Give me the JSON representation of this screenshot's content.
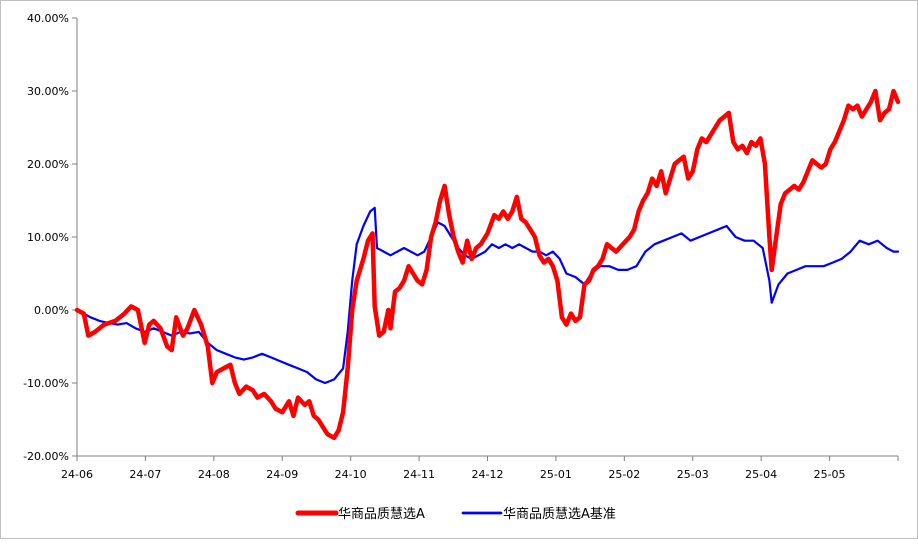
{
  "chart_data": {
    "type": "line",
    "title": "",
    "xlabel": "",
    "ylabel": "",
    "ylim": [
      -20,
      40
    ],
    "y_ticks": [
      "-20.00%",
      "-10.00%",
      "0.00%",
      "10.00%",
      "20.00%",
      "30.00%",
      "40.00%"
    ],
    "x_ticks": [
      "24-06",
      "24-07",
      "24-08",
      "24-09",
      "24-10",
      "24-11",
      "24-12",
      "25-01",
      "25-02",
      "25-03",
      "25-04",
      "25-05"
    ],
    "x_range": [
      "2024-06-01",
      "2025-05-31"
    ],
    "grid": false,
    "legend_position": "bottom",
    "series": [
      {
        "name": "华商品质慧选A",
        "color": "#ff0000",
        "points": [
          [
            "2024-06-01",
            0.0
          ],
          [
            "2024-06-04",
            -0.5
          ],
          [
            "2024-06-06",
            -3.5
          ],
          [
            "2024-06-09",
            -3.0
          ],
          [
            "2024-06-13",
            -2.0
          ],
          [
            "2024-06-18",
            -1.5
          ],
          [
            "2024-06-22",
            -0.5
          ],
          [
            "2024-06-25",
            0.5
          ],
          [
            "2024-06-28",
            0.0
          ],
          [
            "2024-07-01",
            -4.5
          ],
          [
            "2024-07-03",
            -2.0
          ],
          [
            "2024-07-05",
            -1.5
          ],
          [
            "2024-07-08",
            -2.5
          ],
          [
            "2024-07-11",
            -5.0
          ],
          [
            "2024-07-13",
            -5.5
          ],
          [
            "2024-07-15",
            -1.0
          ],
          [
            "2024-07-18",
            -3.5
          ],
          [
            "2024-07-20",
            -2.5
          ],
          [
            "2024-07-23",
            0.0
          ],
          [
            "2024-07-26",
            -2.0
          ],
          [
            "2024-07-29",
            -5.0
          ],
          [
            "2024-07-31",
            -10.0
          ],
          [
            "2024-08-02",
            -8.5
          ],
          [
            "2024-08-05",
            -8.0
          ],
          [
            "2024-08-08",
            -7.5
          ],
          [
            "2024-08-10",
            -10.0
          ],
          [
            "2024-08-12",
            -11.5
          ],
          [
            "2024-08-15",
            -10.5
          ],
          [
            "2024-08-18",
            -11.0
          ],
          [
            "2024-08-20",
            -12.0
          ],
          [
            "2024-08-23",
            -11.5
          ],
          [
            "2024-08-26",
            -12.5
          ],
          [
            "2024-08-28",
            -13.5
          ],
          [
            "2024-08-31",
            -14.0
          ],
          [
            "2024-09-03",
            -12.5
          ],
          [
            "2024-09-05",
            -14.5
          ],
          [
            "2024-09-07",
            -12.0
          ],
          [
            "2024-09-10",
            -13.0
          ],
          [
            "2024-09-12",
            -12.5
          ],
          [
            "2024-09-14",
            -14.5
          ],
          [
            "2024-09-16",
            -15.0
          ],
          [
            "2024-09-18",
            -16.0
          ],
          [
            "2024-09-20",
            -17.0
          ],
          [
            "2024-09-23",
            -17.5
          ],
          [
            "2024-09-25",
            -16.5
          ],
          [
            "2024-09-27",
            -14.0
          ],
          [
            "2024-09-29",
            -8.0
          ],
          [
            "2024-10-01",
            0.0
          ],
          [
            "2024-10-03",
            4.0
          ],
          [
            "2024-10-06",
            7.0
          ],
          [
            "2024-10-08",
            9.5
          ],
          [
            "2024-10-10",
            10.5
          ],
          [
            "2024-10-11",
            0.5
          ],
          [
            "2024-10-13",
            -3.5
          ],
          [
            "2024-10-15",
            -3.0
          ],
          [
            "2024-10-17",
            0.0
          ],
          [
            "2024-10-18",
            -2.5
          ],
          [
            "2024-10-20",
            2.5
          ],
          [
            "2024-10-22",
            3.0
          ],
          [
            "2024-10-24",
            4.0
          ],
          [
            "2024-10-26",
            6.0
          ],
          [
            "2024-10-28",
            5.0
          ],
          [
            "2024-10-30",
            4.0
          ],
          [
            "2024-11-01",
            3.5
          ],
          [
            "2024-11-03",
            5.5
          ],
          [
            "2024-11-05",
            10.0
          ],
          [
            "2024-11-07",
            12.0
          ],
          [
            "2024-11-09",
            15.0
          ],
          [
            "2024-11-11",
            17.0
          ],
          [
            "2024-11-13",
            13.0
          ],
          [
            "2024-11-15",
            10.0
          ],
          [
            "2024-11-17",
            8.0
          ],
          [
            "2024-11-19",
            6.5
          ],
          [
            "2024-11-21",
            9.5
          ],
          [
            "2024-11-23",
            7.0
          ],
          [
            "2024-11-25",
            8.5
          ],
          [
            "2024-11-27",
            9.0
          ],
          [
            "2024-11-30",
            10.5
          ],
          [
            "2024-12-03",
            13.0
          ],
          [
            "2024-12-05",
            12.5
          ],
          [
            "2024-12-07",
            13.5
          ],
          [
            "2024-12-09",
            12.5
          ],
          [
            "2024-12-11",
            13.5
          ],
          [
            "2024-12-13",
            15.5
          ],
          [
            "2024-12-15",
            12.5
          ],
          [
            "2024-12-17",
            12.0
          ],
          [
            "2024-12-19",
            11.0
          ],
          [
            "2024-12-21",
            10.0
          ],
          [
            "2024-12-23",
            7.5
          ],
          [
            "2024-12-25",
            6.5
          ],
          [
            "2024-12-27",
            7.0
          ],
          [
            "2024-12-29",
            6.0
          ],
          [
            "2024-12-31",
            4.0
          ],
          [
            "2025-01-02",
            -1.0
          ],
          [
            "2025-01-04",
            -2.0
          ],
          [
            "2025-01-06",
            -0.5
          ],
          [
            "2025-01-08",
            -1.5
          ],
          [
            "2025-01-10",
            -1.0
          ],
          [
            "2025-01-12",
            3.5
          ],
          [
            "2025-01-14",
            4.0
          ],
          [
            "2025-01-16",
            5.5
          ],
          [
            "2025-01-18",
            6.0
          ],
          [
            "2025-01-20",
            7.0
          ],
          [
            "2025-01-22",
            9.0
          ],
          [
            "2025-01-24",
            8.5
          ],
          [
            "2025-01-26",
            8.0
          ],
          [
            "2025-01-29",
            9.0
          ],
          [
            "2025-02-01",
            10.0
          ],
          [
            "2025-02-03",
            11.0
          ],
          [
            "2025-02-05",
            13.5
          ],
          [
            "2025-02-07",
            15.0
          ],
          [
            "2025-02-09",
            16.0
          ],
          [
            "2025-02-11",
            18.0
          ],
          [
            "2025-02-13",
            17.0
          ],
          [
            "2025-02-15",
            19.0
          ],
          [
            "2025-02-17",
            16.0
          ],
          [
            "2025-02-19",
            18.0
          ],
          [
            "2025-02-21",
            20.0
          ],
          [
            "2025-02-23",
            20.5
          ],
          [
            "2025-02-25",
            21.0
          ],
          [
            "2025-02-27",
            18.0
          ],
          [
            "2025-03-01",
            19.0
          ],
          [
            "2025-03-03",
            22.0
          ],
          [
            "2025-03-05",
            23.5
          ],
          [
            "2025-03-07",
            23.0
          ],
          [
            "2025-03-09",
            24.0
          ],
          [
            "2025-03-11",
            25.0
          ],
          [
            "2025-03-13",
            26.0
          ],
          [
            "2025-03-15",
            26.5
          ],
          [
            "2025-03-17",
            27.0
          ],
          [
            "2025-03-19",
            23.0
          ],
          [
            "2025-03-21",
            22.0
          ],
          [
            "2025-03-23",
            22.5
          ],
          [
            "2025-03-25",
            21.5
          ],
          [
            "2025-03-27",
            23.0
          ],
          [
            "2025-03-29",
            22.5
          ],
          [
            "2025-03-31",
            23.5
          ],
          [
            "2025-04-02",
            20.0
          ],
          [
            "2025-04-04",
            10.0
          ],
          [
            "2025-04-05",
            5.5
          ],
          [
            "2025-04-07",
            10.0
          ],
          [
            "2025-04-09",
            14.5
          ],
          [
            "2025-04-11",
            16.0
          ],
          [
            "2025-04-13",
            16.5
          ],
          [
            "2025-04-15",
            17.0
          ],
          [
            "2025-04-17",
            16.5
          ],
          [
            "2025-04-19",
            17.5
          ],
          [
            "2025-04-21",
            19.0
          ],
          [
            "2025-04-23",
            20.5
          ],
          [
            "2025-04-25",
            20.0
          ],
          [
            "2025-04-27",
            19.5
          ],
          [
            "2025-04-29",
            20.0
          ],
          [
            "2025-05-01",
            22.0
          ],
          [
            "2025-05-03",
            23.0
          ],
          [
            "2025-05-05",
            24.5
          ],
          [
            "2025-05-07",
            26.0
          ],
          [
            "2025-05-09",
            28.0
          ],
          [
            "2025-05-11",
            27.5
          ],
          [
            "2025-05-13",
            28.0
          ],
          [
            "2025-05-15",
            26.5
          ],
          [
            "2025-05-17",
            27.5
          ],
          [
            "2025-05-19",
            28.5
          ],
          [
            "2025-05-21",
            30.0
          ],
          [
            "2025-05-23",
            26.0
          ],
          [
            "2025-05-25",
            27.0
          ],
          [
            "2025-05-27",
            27.5
          ],
          [
            "2025-05-29",
            30.0
          ],
          [
            "2025-05-31",
            28.5
          ]
        ]
      },
      {
        "name": "华商品质慧选A基准",
        "color": "#0000ff",
        "points": [
          [
            "2024-06-01",
            0.0
          ],
          [
            "2024-06-04",
            -0.5
          ],
          [
            "2024-06-07",
            -1.0
          ],
          [
            "2024-06-11",
            -1.5
          ],
          [
            "2024-06-15",
            -1.8
          ],
          [
            "2024-06-19",
            -2.0
          ],
          [
            "2024-06-23",
            -1.8
          ],
          [
            "2024-06-27",
            -2.5
          ],
          [
            "2024-07-01",
            -3.0
          ],
          [
            "2024-07-05",
            -2.5
          ],
          [
            "2024-07-09",
            -3.0
          ],
          [
            "2024-07-13",
            -3.5
          ],
          [
            "2024-07-17",
            -3.0
          ],
          [
            "2024-07-21",
            -3.2
          ],
          [
            "2024-07-25",
            -3.0
          ],
          [
            "2024-07-29",
            -4.5
          ],
          [
            "2024-08-02",
            -5.5
          ],
          [
            "2024-08-06",
            -6.0
          ],
          [
            "2024-08-10",
            -6.5
          ],
          [
            "2024-08-14",
            -6.8
          ],
          [
            "2024-08-18",
            -6.5
          ],
          [
            "2024-08-22",
            -6.0
          ],
          [
            "2024-08-26",
            -6.5
          ],
          [
            "2024-08-30",
            -7.0
          ],
          [
            "2024-09-03",
            -7.5
          ],
          [
            "2024-09-07",
            -8.0
          ],
          [
            "2024-09-11",
            -8.5
          ],
          [
            "2024-09-15",
            -9.5
          ],
          [
            "2024-09-19",
            -10.0
          ],
          [
            "2024-09-23",
            -9.5
          ],
          [
            "2024-09-27",
            -8.0
          ],
          [
            "2024-09-29",
            -3.0
          ],
          [
            "2024-10-01",
            4.0
          ],
          [
            "2024-10-03",
            9.0
          ],
          [
            "2024-10-06",
            11.5
          ],
          [
            "2024-10-09",
            13.5
          ],
          [
            "2024-10-11",
            14.0
          ],
          [
            "2024-10-12",
            8.5
          ],
          [
            "2024-10-15",
            8.0
          ],
          [
            "2024-10-18",
            7.5
          ],
          [
            "2024-10-21",
            8.0
          ],
          [
            "2024-10-24",
            8.5
          ],
          [
            "2024-10-27",
            8.0
          ],
          [
            "2024-10-30",
            7.5
          ],
          [
            "2024-11-02",
            8.0
          ],
          [
            "2024-11-05",
            10.0
          ],
          [
            "2024-11-08",
            12.0
          ],
          [
            "2024-11-11",
            11.5
          ],
          [
            "2024-11-14",
            10.0
          ],
          [
            "2024-11-17",
            8.5
          ],
          [
            "2024-11-20",
            7.5
          ],
          [
            "2024-11-23",
            7.0
          ],
          [
            "2024-11-26",
            7.5
          ],
          [
            "2024-11-29",
            8.0
          ],
          [
            "2024-12-02",
            9.0
          ],
          [
            "2024-12-05",
            8.5
          ],
          [
            "2024-12-08",
            9.0
          ],
          [
            "2024-12-11",
            8.5
          ],
          [
            "2024-12-14",
            9.0
          ],
          [
            "2024-12-17",
            8.5
          ],
          [
            "2024-12-20",
            8.0
          ],
          [
            "2024-12-23",
            8.0
          ],
          [
            "2024-12-26",
            7.5
          ],
          [
            "2024-12-29",
            8.0
          ],
          [
            "2025-01-01",
            7.0
          ],
          [
            "2025-01-04",
            5.0
          ],
          [
            "2025-01-08",
            4.5
          ],
          [
            "2025-01-12",
            3.5
          ],
          [
            "2025-01-15",
            5.0
          ],
          [
            "2025-01-19",
            6.0
          ],
          [
            "2025-01-23",
            6.0
          ],
          [
            "2025-01-27",
            5.5
          ],
          [
            "2025-01-31",
            5.5
          ],
          [
            "2025-02-04",
            6.0
          ],
          [
            "2025-02-08",
            8.0
          ],
          [
            "2025-02-12",
            9.0
          ],
          [
            "2025-02-16",
            9.5
          ],
          [
            "2025-02-20",
            10.0
          ],
          [
            "2025-02-24",
            10.5
          ],
          [
            "2025-02-28",
            9.5
          ],
          [
            "2025-03-04",
            10.0
          ],
          [
            "2025-03-08",
            10.5
          ],
          [
            "2025-03-12",
            11.0
          ],
          [
            "2025-03-16",
            11.5
          ],
          [
            "2025-03-20",
            10.0
          ],
          [
            "2025-03-24",
            9.5
          ],
          [
            "2025-03-28",
            9.5
          ],
          [
            "2025-04-01",
            8.5
          ],
          [
            "2025-04-04",
            4.0
          ],
          [
            "2025-04-05",
            1.0
          ],
          [
            "2025-04-08",
            3.5
          ],
          [
            "2025-04-12",
            5.0
          ],
          [
            "2025-04-16",
            5.5
          ],
          [
            "2025-04-20",
            6.0
          ],
          [
            "2025-04-24",
            6.0
          ],
          [
            "2025-04-28",
            6.0
          ],
          [
            "2025-05-02",
            6.5
          ],
          [
            "2025-05-06",
            7.0
          ],
          [
            "2025-05-10",
            8.0
          ],
          [
            "2025-05-14",
            9.5
          ],
          [
            "2025-05-18",
            9.0
          ],
          [
            "2025-05-22",
            9.5
          ],
          [
            "2025-05-26",
            8.5
          ],
          [
            "2025-05-29",
            8.0
          ],
          [
            "2025-05-31",
            8.0
          ]
        ]
      }
    ]
  }
}
